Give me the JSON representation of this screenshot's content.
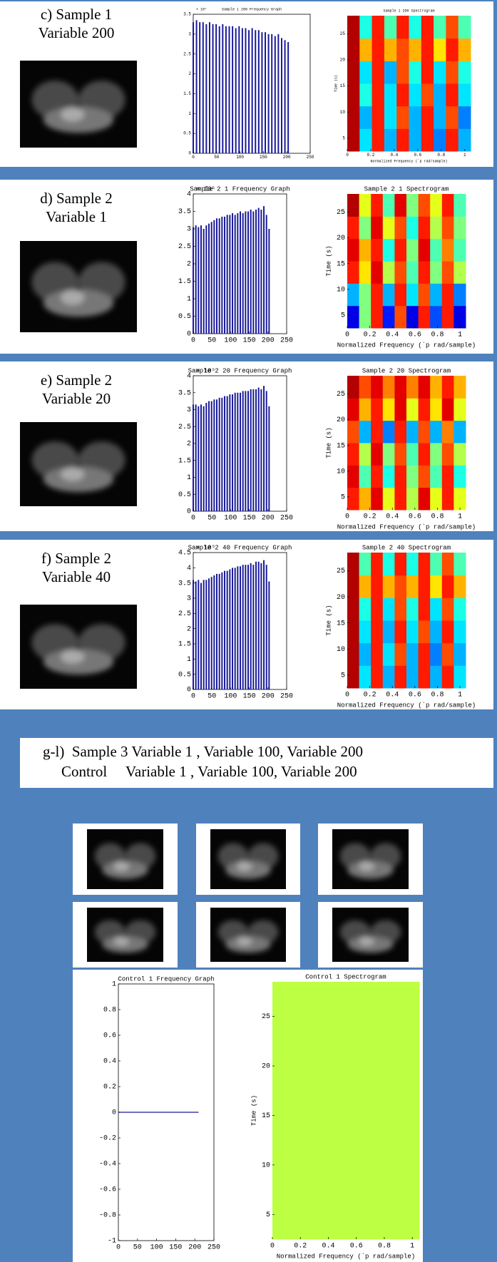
{
  "panels": [
    {
      "label": [
        "c) Sample 1",
        "Variable 200"
      ]
    },
    {
      "label": [
        "d) Sample 2",
        "Variable 1"
      ]
    },
    {
      "label": [
        "e) Sample 2",
        "Variable 20"
      ]
    },
    {
      "label": [
        "f) Sample 2",
        "Variable 40"
      ]
    }
  ],
  "section_header": [
    "g-l)  Sample 3 Variable 1 , Variable 100, Variable 200",
    "Control     Variable 1 , Variable 100, Variable 200"
  ],
  "chart_data": [
    {
      "type": "bar",
      "title": "Sample 1 200 Frequency Graph",
      "exponent": "× 10⁵",
      "color": "#1a1a9a",
      "x": [
        0,
        7,
        14,
        21,
        28,
        35,
        42,
        49,
        56,
        63,
        70,
        77,
        84,
        91,
        98,
        105,
        112,
        119,
        126,
        133,
        140,
        147,
        154,
        161,
        168,
        175,
        182,
        189,
        196,
        203
      ],
      "values": [
        3.3,
        3.35,
        3.3,
        3.3,
        3.25,
        3.3,
        3.25,
        3.25,
        3.2,
        3.25,
        3.2,
        3.2,
        3.2,
        3.15,
        3.2,
        3.15,
        3.15,
        3.1,
        3.15,
        3.1,
        3.1,
        3.05,
        3.05,
        3.0,
        3.0,
        2.95,
        3.0,
        2.9,
        2.85,
        2.8
      ],
      "xlim": [
        0,
        250
      ],
      "xticks": [
        0,
        50,
        100,
        150,
        200,
        250
      ],
      "ylim": [
        0,
        3.5
      ],
      "yticks": [
        0,
        0.5,
        1,
        1.5,
        2,
        2.5,
        3,
        3.5
      ]
    },
    {
      "type": "heatmap",
      "title": "Sample 1 200 Spectrogram",
      "xlabel": "Normalized Frequency  (`p rad/sample)",
      "ylabel": "Time (s)",
      "colormap": "jet",
      "xlim": [
        0,
        1.05
      ],
      "xticks": [
        0,
        0.2,
        0.4,
        0.6,
        0.8,
        1
      ],
      "ylim": [
        2.5,
        28.5
      ],
      "yticks": [
        5,
        10,
        15,
        20,
        25
      ],
      "values": [
        [
          0.95,
          0.35,
          0.85,
          0.3,
          0.85,
          0.3,
          0.85,
          0.25,
          0.85,
          0.3
        ],
        [
          0.95,
          0.3,
          0.85,
          0.35,
          0.8,
          0.3,
          0.85,
          0.3,
          0.8,
          0.25
        ],
        [
          0.95,
          0.4,
          0.85,
          0.35,
          0.85,
          0.35,
          0.8,
          0.3,
          0.85,
          0.35
        ],
        [
          0.95,
          0.35,
          0.85,
          0.3,
          0.8,
          0.4,
          0.85,
          0.35,
          0.8,
          0.4
        ],
        [
          0.95,
          0.7,
          0.85,
          0.7,
          0.8,
          0.7,
          0.85,
          0.65,
          0.85,
          0.7
        ],
        [
          0.95,
          0.4,
          0.85,
          0.45,
          0.85,
          0.4,
          0.85,
          0.45,
          0.8,
          0.45
        ]
      ]
    },
    {
      "type": "bar",
      "title": "Sample 2 1 Frequency Graph",
      "exponent": "× 10⁵",
      "color": "#1a1a9a",
      "x": [
        0,
        7,
        14,
        21,
        28,
        35,
        42,
        49,
        56,
        63,
        70,
        77,
        84,
        91,
        98,
        105,
        112,
        119,
        126,
        133,
        140,
        147,
        154,
        161,
        168,
        175,
        182,
        189,
        196,
        203
      ],
      "values": [
        3.05,
        3.1,
        3.05,
        3.1,
        3.0,
        3.1,
        3.15,
        3.2,
        3.25,
        3.3,
        3.3,
        3.35,
        3.35,
        3.4,
        3.4,
        3.45,
        3.4,
        3.45,
        3.5,
        3.45,
        3.5,
        3.5,
        3.55,
        3.5,
        3.55,
        3.6,
        3.55,
        3.65,
        3.4,
        3.0
      ],
      "xlim": [
        0,
        250
      ],
      "xticks": [
        0,
        50,
        100,
        150,
        200,
        250
      ],
      "ylim": [
        0,
        4
      ],
      "yticks": [
        0,
        0.5,
        1,
        1.5,
        2,
        2.5,
        3,
        3.5,
        4
      ]
    },
    {
      "type": "heatmap",
      "title": "Sample 2 1 Spectrogram",
      "xlabel": "Normalized Frequency  (`p rad/sample)",
      "ylabel": "Time (s)",
      "colormap": "jet",
      "xlim": [
        0,
        1.05
      ],
      "xticks": [
        0,
        0.2,
        0.4,
        0.6,
        0.8,
        1
      ],
      "ylim": [
        2.5,
        28.5
      ],
      "yticks": [
        5,
        10,
        15,
        20,
        25
      ],
      "values": [
        [
          0.1,
          0.5,
          0.85,
          0.15,
          0.8,
          0.1,
          0.85,
          0.2,
          0.85,
          0.1
        ],
        [
          0.3,
          0.5,
          0.85,
          0.3,
          0.85,
          0.35,
          0.8,
          0.3,
          0.85,
          0.25
        ],
        [
          0.85,
          0.65,
          0.9,
          0.55,
          0.8,
          0.45,
          0.85,
          0.5,
          0.8,
          0.55
        ],
        [
          0.9,
          0.7,
          0.85,
          0.4,
          0.85,
          0.5,
          0.9,
          0.45,
          0.75,
          0.45
        ],
        [
          0.85,
          0.5,
          0.9,
          0.6,
          0.8,
          0.4,
          0.85,
          0.55,
          0.8,
          0.5
        ],
        [
          0.95,
          0.6,
          0.85,
          0.45,
          0.9,
          0.5,
          0.8,
          0.6,
          0.85,
          0.45
        ]
      ]
    },
    {
      "type": "bar",
      "title": "Sample 2 20 Frequency Graph",
      "exponent": "× 10⁵",
      "color": "#1a1a9a",
      "x": [
        0,
        7,
        14,
        21,
        28,
        35,
        42,
        49,
        56,
        63,
        70,
        77,
        84,
        91,
        98,
        105,
        112,
        119,
        126,
        133,
        140,
        147,
        154,
        161,
        168,
        175,
        182,
        189,
        196,
        203
      ],
      "values": [
        3.15,
        3.15,
        3.1,
        3.15,
        3.1,
        3.2,
        3.25,
        3.25,
        3.3,
        3.3,
        3.35,
        3.35,
        3.4,
        3.4,
        3.45,
        3.45,
        3.5,
        3.5,
        3.5,
        3.55,
        3.55,
        3.55,
        3.6,
        3.6,
        3.6,
        3.65,
        3.6,
        3.7,
        3.55,
        3.1
      ],
      "xlim": [
        0,
        250
      ],
      "xticks": [
        0,
        50,
        100,
        150,
        200,
        250
      ],
      "ylim": [
        0,
        4
      ],
      "yticks": [
        0,
        0.5,
        1,
        1.5,
        2,
        2.5,
        3,
        3.5,
        4
      ]
    },
    {
      "type": "heatmap",
      "title": "Sample 2 20 Spectrogram",
      "xlabel": "Normalized Frequency  (`p rad/sample)",
      "ylabel": "Time (s)",
      "colormap": "jet",
      "xlim": [
        0,
        1.05
      ],
      "xticks": [
        0,
        0.2,
        0.4,
        0.6,
        0.8,
        1
      ],
      "ylim": [
        2.5,
        28.5
      ],
      "yticks": [
        5,
        10,
        15,
        20,
        25
      ],
      "values": [
        [
          0.85,
          0.7,
          0.9,
          0.6,
          0.85,
          0.55,
          0.9,
          0.6,
          0.85,
          0.6
        ],
        [
          0.9,
          0.45,
          0.85,
          0.4,
          0.85,
          0.5,
          0.8,
          0.45,
          0.85,
          0.4
        ],
        [
          0.85,
          0.55,
          0.9,
          0.5,
          0.8,
          0.45,
          0.85,
          0.5,
          0.8,
          0.55
        ],
        [
          0.8,
          0.3,
          0.85,
          0.25,
          0.85,
          0.3,
          0.8,
          0.3,
          0.75,
          0.3
        ],
        [
          0.9,
          0.7,
          0.85,
          0.65,
          0.9,
          0.6,
          0.85,
          0.65,
          0.9,
          0.6
        ],
        [
          0.95,
          0.8,
          0.9,
          0.75,
          0.9,
          0.75,
          0.9,
          0.7,
          0.85,
          0.7
        ]
      ]
    },
    {
      "type": "bar",
      "title": "Sample 2 40 Frequency Graph",
      "exponent": "× 10⁵",
      "color": "#1a1a9a",
      "x": [
        0,
        7,
        14,
        21,
        28,
        35,
        42,
        49,
        56,
        63,
        70,
        77,
        84,
        91,
        98,
        105,
        112,
        119,
        126,
        133,
        140,
        147,
        154,
        161,
        168,
        175,
        182,
        189,
        196,
        203
      ],
      "values": [
        3.6,
        3.55,
        3.6,
        3.5,
        3.6,
        3.6,
        3.65,
        3.7,
        3.75,
        3.8,
        3.8,
        3.85,
        3.9,
        3.9,
        3.95,
        4.0,
        4.0,
        4.05,
        4.05,
        4.1,
        4.1,
        4.1,
        4.15,
        4.1,
        4.2,
        4.2,
        4.15,
        4.25,
        4.1,
        3.55
      ],
      "xlim": [
        0,
        250
      ],
      "xticks": [
        0,
        50,
        100,
        150,
        200,
        250
      ],
      "ylim": [
        0,
        4.5
      ],
      "yticks": [
        0,
        0.5,
        1,
        1.5,
        2,
        2.5,
        3,
        3.5,
        4,
        4.5
      ]
    },
    {
      "type": "heatmap",
      "title": "Sample 2 40 Spectrogram",
      "xlabel": "Normalized Frequency  (`p rad/sample)",
      "ylabel": "Time (s)",
      "colormap": "jet",
      "xlim": [
        0,
        1.05
      ],
      "xticks": [
        0,
        0.2,
        0.4,
        0.6,
        0.8,
        1
      ],
      "ylim": [
        2.5,
        28.5
      ],
      "yticks": [
        5,
        10,
        15,
        20,
        25
      ],
      "values": [
        [
          0.95,
          0.35,
          0.85,
          0.3,
          0.85,
          0.3,
          0.85,
          0.3,
          0.85,
          0.35
        ],
        [
          0.95,
          0.3,
          0.85,
          0.35,
          0.8,
          0.3,
          0.85,
          0.25,
          0.8,
          0.3
        ],
        [
          0.95,
          0.35,
          0.85,
          0.3,
          0.85,
          0.35,
          0.8,
          0.3,
          0.85,
          0.35
        ],
        [
          0.95,
          0.4,
          0.85,
          0.35,
          0.8,
          0.4,
          0.85,
          0.35,
          0.8,
          0.4
        ],
        [
          0.95,
          0.7,
          0.85,
          0.7,
          0.8,
          0.7,
          0.85,
          0.65,
          0.85,
          0.7
        ],
        [
          0.95,
          0.45,
          0.85,
          0.4,
          0.85,
          0.4,
          0.85,
          0.45,
          0.8,
          0.45
        ]
      ]
    },
    {
      "type": "line",
      "title": "Control 1 Frequency Graph",
      "color": "#1a1a9a",
      "x": [
        0,
        210
      ],
      "values": [
        0,
        0
      ],
      "xlim": [
        0,
        250
      ],
      "xticks": [
        0,
        50,
        100,
        150,
        200,
        250
      ],
      "ylim": [
        -1,
        1
      ],
      "yticks": [
        -1,
        -0.8,
        -0.6,
        -0.4,
        -0.2,
        0,
        0.2,
        0.4,
        0.6,
        0.8,
        1
      ]
    },
    {
      "type": "heatmap",
      "title": "Control 1 Spectrogram",
      "xlabel": "Normalized Frequency  (`p rad/sample)",
      "ylabel": "Time (s)",
      "colormap": "jet",
      "xlim": [
        0,
        1.05
      ],
      "xticks": [
        0,
        0.2,
        0.4,
        0.6,
        0.8,
        1
      ],
      "ylim": [
        2.5,
        28.5
      ],
      "yticks": [
        5,
        10,
        15,
        20,
        25
      ],
      "values": [
        [
          0.56
        ]
      ]
    }
  ]
}
